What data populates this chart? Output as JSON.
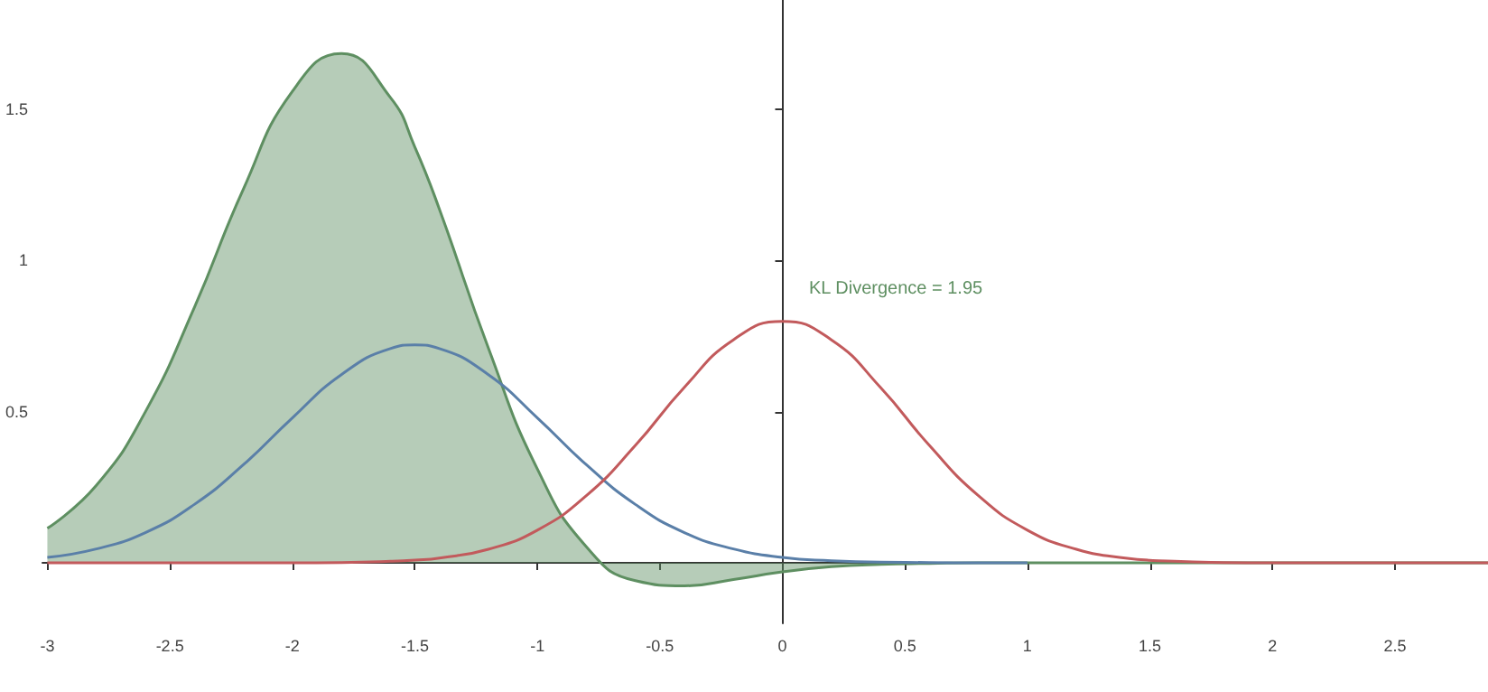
{
  "chart_data": {
    "type": "line",
    "x": [
      -3,
      -2.8,
      -2.6,
      -2.4,
      -2.2,
      -2,
      -1.8,
      -1.6,
      -1.5,
      -1.4,
      -1.2,
      -1,
      -0.8,
      -0.6,
      -0.4,
      -0.2,
      0,
      0.2,
      0.4,
      0.6,
      0.8,
      1,
      1.2,
      1.4,
      1.6,
      1.8,
      2,
      2.2,
      2.4,
      2.6,
      2.8,
      2.88
    ],
    "series": [
      {
        "type": "area",
        "color": "#5e8f61",
        "values": [
          0.114,
          0.256,
          0.499,
          0.844,
          1.235,
          1.558,
          1.683,
          1.538,
          1.374,
          1.169,
          0.71,
          0.31,
          0.053,
          -0.059,
          -0.076,
          -0.055,
          -0.03,
          -0.013,
          -0.005,
          -0.002,
          0,
          0,
          0,
          0,
          0,
          0,
          0,
          0,
          0,
          0,
          0,
          0
        ]
      },
      {
        "color": "#5a7fa8",
        "values": [
          0.018,
          0.046,
          0.1,
          0.193,
          0.324,
          0.479,
          0.622,
          0.708,
          0.72,
          0.708,
          0.622,
          0.479,
          0.324,
          0.193,
          0.1,
          0.046,
          0.018,
          0.007,
          0.002,
          0.001,
          0,
          0,
          null,
          null,
          null,
          null,
          null,
          null,
          null,
          null,
          null,
          null
        ]
      },
      {
        "color": "#c25a5c",
        "values": [
          0,
          0,
          0,
          0,
          0,
          0,
          0.001,
          0.005,
          0.009,
          0.016,
          0.045,
          0.108,
          0.222,
          0.388,
          0.58,
          0.737,
          0.798,
          0.737,
          0.58,
          0.388,
          0.222,
          0.108,
          0.045,
          0.016,
          0.005,
          0.001,
          0,
          0,
          0,
          0,
          0,
          0
        ]
      }
    ],
    "xlim": [
      -3.02,
      2.88
    ],
    "ylim": [
      -0.2,
      1.86
    ],
    "xticks": [
      -3,
      -2.5,
      -2,
      -1.5,
      -1,
      -0.5,
      0,
      0.5,
      1,
      1.5,
      2,
      2.5
    ],
    "yticks": [
      0.5,
      1,
      1.5
    ],
    "marker": "none",
    "annotations": [
      "KL Divergence = 1.95"
    ]
  }
}
